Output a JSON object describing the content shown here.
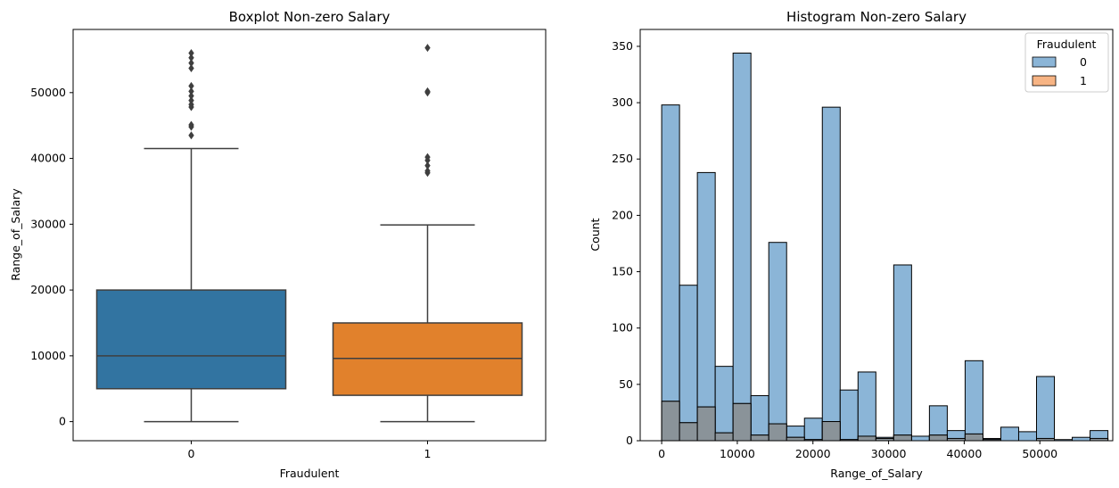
{
  "chart_data": [
    {
      "type": "box",
      "title": "Boxplot Non-zero Salary",
      "xlabel": "Fraudulent",
      "ylabel": "Range_of_Salary",
      "categories": [
        "0",
        "1"
      ],
      "ylim": [
        -2900,
        59600
      ],
      "yticks": [
        0,
        10000,
        20000,
        30000,
        40000,
        50000
      ],
      "ytick_labels": [
        "0",
        "10000",
        "20000",
        "30000",
        "40000",
        "50000"
      ],
      "boxes": [
        {
          "category": "0",
          "color": "#3274a1",
          "whisker_low": 0,
          "q1": 5000,
          "median": 10000,
          "q3": 20000,
          "whisker_high": 41500,
          "outliers": [
            43500,
            44800,
            45100,
            47800,
            48200,
            48800,
            49500,
            50200,
            51000,
            53700,
            54500,
            55300,
            56000
          ]
        },
        {
          "category": "1",
          "color": "#e1812c",
          "whisker_low": 0,
          "q1": 4000,
          "median": 9600,
          "q3": 15000,
          "whisker_high": 29900,
          "outliers": [
            37800,
            38100,
            38900,
            39700,
            40200,
            50000,
            50200,
            56800
          ]
        }
      ]
    },
    {
      "type": "histogram",
      "title": "Histogram Non-zero Salary",
      "xlabel": "Range_of_Salary",
      "ylabel": "Count",
      "xlim": [
        -2840,
        59640
      ],
      "ylim": [
        0,
        365
      ],
      "xticks": [
        0,
        10000,
        20000,
        30000,
        40000,
        50000
      ],
      "xtick_labels": [
        "0",
        "10000",
        "20000",
        "30000",
        "40000",
        "50000"
      ],
      "yticks": [
        0,
        50,
        100,
        150,
        200,
        250,
        300,
        350
      ],
      "ytick_labels": [
        "0",
        "50",
        "100",
        "150",
        "200",
        "250",
        "300",
        "350"
      ],
      "bin_start": 0,
      "bin_width": 2360,
      "legend": {
        "title": "Fraudulent",
        "position": "top-right",
        "entries": [
          "0",
          "1"
        ]
      },
      "series": [
        {
          "name": "0",
          "color": "#8bb5d7",
          "values": [
            298,
            138,
            238,
            66,
            344,
            40,
            176,
            13,
            20,
            296,
            45,
            61,
            3,
            156,
            4,
            31,
            9,
            71,
            2,
            12,
            8,
            57,
            1,
            3,
            9
          ]
        },
        {
          "name": "1",
          "color": "#f7b484",
          "values": [
            35,
            16,
            30,
            7,
            33,
            5,
            15,
            3,
            1,
            17,
            1,
            4,
            2,
            5,
            0,
            5,
            2,
            6,
            1,
            0,
            0,
            2,
            0,
            0,
            2
          ]
        }
      ]
    }
  ]
}
